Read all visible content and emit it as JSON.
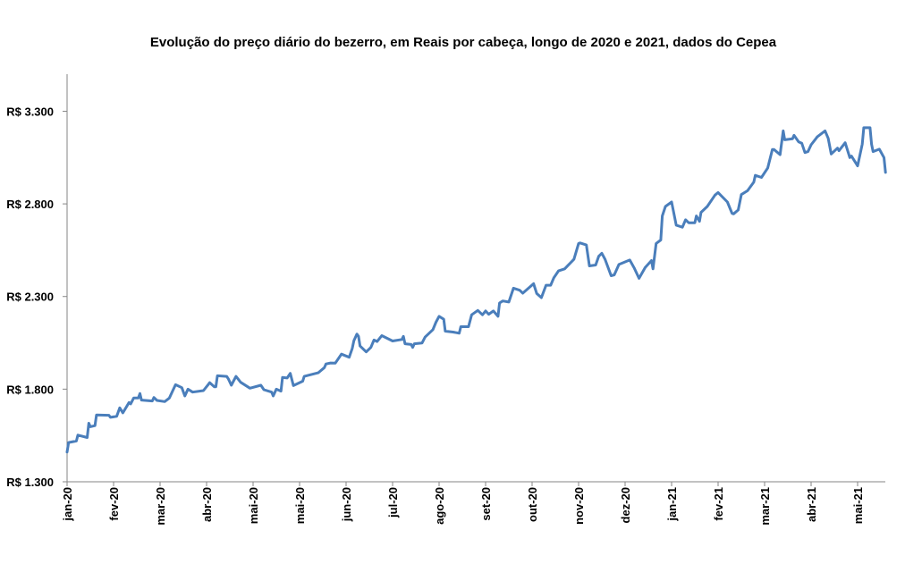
{
  "chart_data": {
    "type": "line",
    "title": "Evolução do preço diário do bezerro, em Reais por cabeça, longo de 2020 e 2021, dados do Cepea",
    "xlabel": "",
    "ylabel": "",
    "ylim": [
      1300,
      3500
    ],
    "xlim": [
      "2020-01-02",
      "2021-06-13"
    ],
    "grid": false,
    "legend": "none",
    "line_color": "#4a7ebb",
    "y_ticks": [
      1300,
      1800,
      2300,
      2800,
      3300
    ],
    "y_tick_labels": [
      "R$ 1.300",
      "R$ 1.800",
      "R$ 2.300",
      "R$ 2.800",
      "R$ 3.300"
    ],
    "x_tick_labels": [
      "jan-20",
      "fev-20",
      "mar-20",
      "abr-20",
      "mai-20",
      "mai-20",
      "jun-20",
      "jul-20",
      "ago-20",
      "set-20",
      "out-20",
      "nov-20",
      "dez-20",
      "jan-21",
      "fev-21",
      "mar-21",
      "abr-21",
      "mai-21"
    ],
    "series": [
      {
        "points": [
          [
            "2020-01-02",
            1460
          ],
          [
            "2020-01-03",
            1512
          ],
          [
            "2020-01-08",
            1520
          ],
          [
            "2020-01-09",
            1552
          ],
          [
            "2020-01-15",
            1539
          ],
          [
            "2020-01-16",
            1616
          ],
          [
            "2020-01-17",
            1597
          ],
          [
            "2020-01-20",
            1603
          ],
          [
            "2020-01-21",
            1661
          ],
          [
            "2020-01-29",
            1659
          ],
          [
            "2020-01-30",
            1648
          ],
          [
            "2020-02-03",
            1653
          ],
          [
            "2020-02-05",
            1699
          ],
          [
            "2020-02-07",
            1672
          ],
          [
            "2020-02-11",
            1728
          ],
          [
            "2020-02-12",
            1720
          ],
          [
            "2020-02-14",
            1752
          ],
          [
            "2020-02-17",
            1752
          ],
          [
            "2020-02-18",
            1776
          ],
          [
            "2020-02-19",
            1741
          ],
          [
            "2020-02-26",
            1736
          ],
          [
            "2020-02-27",
            1755
          ],
          [
            "2020-02-29",
            1739
          ],
          [
            "2020-03-05",
            1733
          ],
          [
            "2020-03-08",
            1752
          ],
          [
            "2020-03-12",
            1824
          ],
          [
            "2020-03-16",
            1808
          ],
          [
            "2020-03-18",
            1763
          ],
          [
            "2020-03-20",
            1800
          ],
          [
            "2020-03-23",
            1784
          ],
          [
            "2020-03-30",
            1792
          ],
          [
            "2020-04-02",
            1824
          ],
          [
            "2020-04-03",
            1835
          ],
          [
            "2020-04-06",
            1813
          ],
          [
            "2020-04-07",
            1813
          ],
          [
            "2020-04-08",
            1872
          ],
          [
            "2020-04-14",
            1869
          ],
          [
            "2020-04-15",
            1856
          ],
          [
            "2020-04-17",
            1821
          ],
          [
            "2020-04-20",
            1869
          ],
          [
            "2020-04-23",
            1837
          ],
          [
            "2020-04-29",
            1805
          ],
          [
            "2020-05-06",
            1821
          ],
          [
            "2020-05-08",
            1797
          ],
          [
            "2020-05-13",
            1784
          ],
          [
            "2020-05-14",
            1763
          ],
          [
            "2020-05-16",
            1800
          ],
          [
            "2020-05-19",
            1789
          ],
          [
            "2020-05-20",
            1863
          ],
          [
            "2020-05-23",
            1860
          ],
          [
            "2020-05-25",
            1885
          ],
          [
            "2020-05-27",
            1819
          ],
          [
            "2020-06-02",
            1843
          ],
          [
            "2020-06-03",
            1869
          ],
          [
            "2020-06-08",
            1880
          ],
          [
            "2020-06-12",
            1888
          ],
          [
            "2020-06-16",
            1916
          ],
          [
            "2020-06-17",
            1936
          ],
          [
            "2020-06-20",
            1941
          ],
          [
            "2020-06-23",
            1940
          ],
          [
            "2020-06-27",
            1989
          ],
          [
            "2020-07-02",
            1972
          ],
          [
            "2020-07-04",
            2020
          ],
          [
            "2020-07-05",
            2061
          ],
          [
            "2020-07-07",
            2097
          ],
          [
            "2020-07-08",
            2085
          ],
          [
            "2020-07-09",
            2033
          ],
          [
            "2020-07-13",
            2001
          ],
          [
            "2020-07-16",
            2025
          ],
          [
            "2020-07-18",
            2065
          ],
          [
            "2020-07-20",
            2057
          ],
          [
            "2020-07-23",
            2089
          ],
          [
            "2020-07-30",
            2060
          ],
          [
            "2020-08-05",
            2068
          ],
          [
            "2020-08-06",
            2085
          ],
          [
            "2020-08-07",
            2045
          ],
          [
            "2020-08-11",
            2041
          ],
          [
            "2020-08-12",
            2025
          ],
          [
            "2020-08-13",
            2045
          ],
          [
            "2020-08-18",
            2049
          ],
          [
            "2020-08-20",
            2081
          ],
          [
            "2020-08-25",
            2121
          ],
          [
            "2020-08-27",
            2161
          ],
          [
            "2020-08-29",
            2193
          ],
          [
            "2020-09-01",
            2177
          ],
          [
            "2020-09-02",
            2113
          ],
          [
            "2020-09-07",
            2108
          ],
          [
            "2020-09-11",
            2102
          ],
          [
            "2020-09-12",
            2137
          ],
          [
            "2020-09-17",
            2137
          ],
          [
            "2020-09-19",
            2201
          ],
          [
            "2020-09-23",
            2225
          ],
          [
            "2020-09-26",
            2201
          ],
          [
            "2020-09-28",
            2222
          ],
          [
            "2020-09-30",
            2204
          ],
          [
            "2020-10-03",
            2222
          ],
          [
            "2020-10-06",
            2193
          ],
          [
            "2020-10-07",
            2265
          ],
          [
            "2020-10-09",
            2276
          ],
          [
            "2020-10-13",
            2270
          ],
          [
            "2020-10-16",
            2345
          ],
          [
            "2020-10-20",
            2334
          ],
          [
            "2020-10-22",
            2318
          ],
          [
            "2020-10-29",
            2369
          ],
          [
            "2020-10-31",
            2316
          ],
          [
            "2020-11-03",
            2294
          ],
          [
            "2020-11-06",
            2361
          ],
          [
            "2020-11-09",
            2361
          ],
          [
            "2020-11-11",
            2401
          ],
          [
            "2020-11-14",
            2438
          ],
          [
            "2020-11-18",
            2449
          ],
          [
            "2020-11-24",
            2501
          ],
          [
            "2020-11-27",
            2586
          ],
          [
            "2020-11-28",
            2589
          ],
          [
            "2020-12-02",
            2578
          ],
          [
            "2020-12-04",
            2465
          ],
          [
            "2020-12-08",
            2470
          ],
          [
            "2020-12-10",
            2517
          ],
          [
            "2020-12-12",
            2533
          ],
          [
            "2020-12-14",
            2502
          ],
          [
            "2020-12-18",
            2412
          ],
          [
            "2020-12-20",
            2417
          ],
          [
            "2020-12-23",
            2473
          ],
          [
            "2020-12-30",
            2497
          ],
          [
            "2021-01-02",
            2452
          ],
          [
            "2021-01-05",
            2398
          ],
          [
            "2021-01-09",
            2457
          ],
          [
            "2021-01-13",
            2494
          ],
          [
            "2021-01-14",
            2449
          ],
          [
            "2021-01-16",
            2586
          ],
          [
            "2021-01-19",
            2605
          ],
          [
            "2021-01-20",
            2735
          ],
          [
            "2021-01-22",
            2786
          ],
          [
            "2021-01-26",
            2810
          ],
          [
            "2021-01-29",
            2685
          ],
          [
            "2021-02-02",
            2674
          ],
          [
            "2021-02-04",
            2714
          ],
          [
            "2021-02-06",
            2698
          ],
          [
            "2021-02-10",
            2698
          ],
          [
            "2021-02-11",
            2735
          ],
          [
            "2021-02-13",
            2706
          ],
          [
            "2021-02-14",
            2754
          ],
          [
            "2021-02-18",
            2786
          ],
          [
            "2021-02-23",
            2847
          ],
          [
            "2021-02-25",
            2861
          ],
          [
            "2021-03-03",
            2810
          ],
          [
            "2021-03-06",
            2749
          ],
          [
            "2021-03-07",
            2746
          ],
          [
            "2021-03-10",
            2767
          ],
          [
            "2021-03-12",
            2850
          ],
          [
            "2021-03-16",
            2871
          ],
          [
            "2021-03-20",
            2917
          ],
          [
            "2021-03-21",
            2954
          ],
          [
            "2021-03-25",
            2943
          ],
          [
            "2021-03-29",
            2994
          ],
          [
            "2021-04-01",
            3094
          ],
          [
            "2021-04-02",
            3094
          ],
          [
            "2021-04-06",
            3066
          ],
          [
            "2021-04-08",
            3194
          ],
          [
            "2021-04-09",
            3146
          ],
          [
            "2021-04-14",
            3151
          ],
          [
            "2021-04-15",
            3170
          ],
          [
            "2021-04-18",
            3135
          ],
          [
            "2021-04-20",
            3127
          ],
          [
            "2021-04-22",
            3077
          ],
          [
            "2021-04-24",
            3082
          ],
          [
            "2021-04-26",
            3119
          ],
          [
            "2021-04-29",
            3151
          ],
          [
            "2021-04-30",
            3162
          ],
          [
            "2021-05-05",
            3194
          ],
          [
            "2021-05-07",
            3154
          ],
          [
            "2021-05-09",
            3069
          ],
          [
            "2021-05-13",
            3101
          ],
          [
            "2021-05-14",
            3087
          ],
          [
            "2021-05-18",
            3130
          ],
          [
            "2021-05-21",
            3050
          ],
          [
            "2021-05-22",
            3058
          ],
          [
            "2021-05-26",
            3005
          ],
          [
            "2021-05-29",
            3122
          ],
          [
            "2021-05-30",
            3211
          ],
          [
            "2021-06-03",
            3211
          ],
          [
            "2021-06-04",
            3122
          ],
          [
            "2021-06-05",
            3082
          ],
          [
            "2021-06-09",
            3095
          ],
          [
            "2021-06-12",
            3050
          ],
          [
            "2021-06-13",
            2970
          ]
        ]
      }
    ]
  }
}
